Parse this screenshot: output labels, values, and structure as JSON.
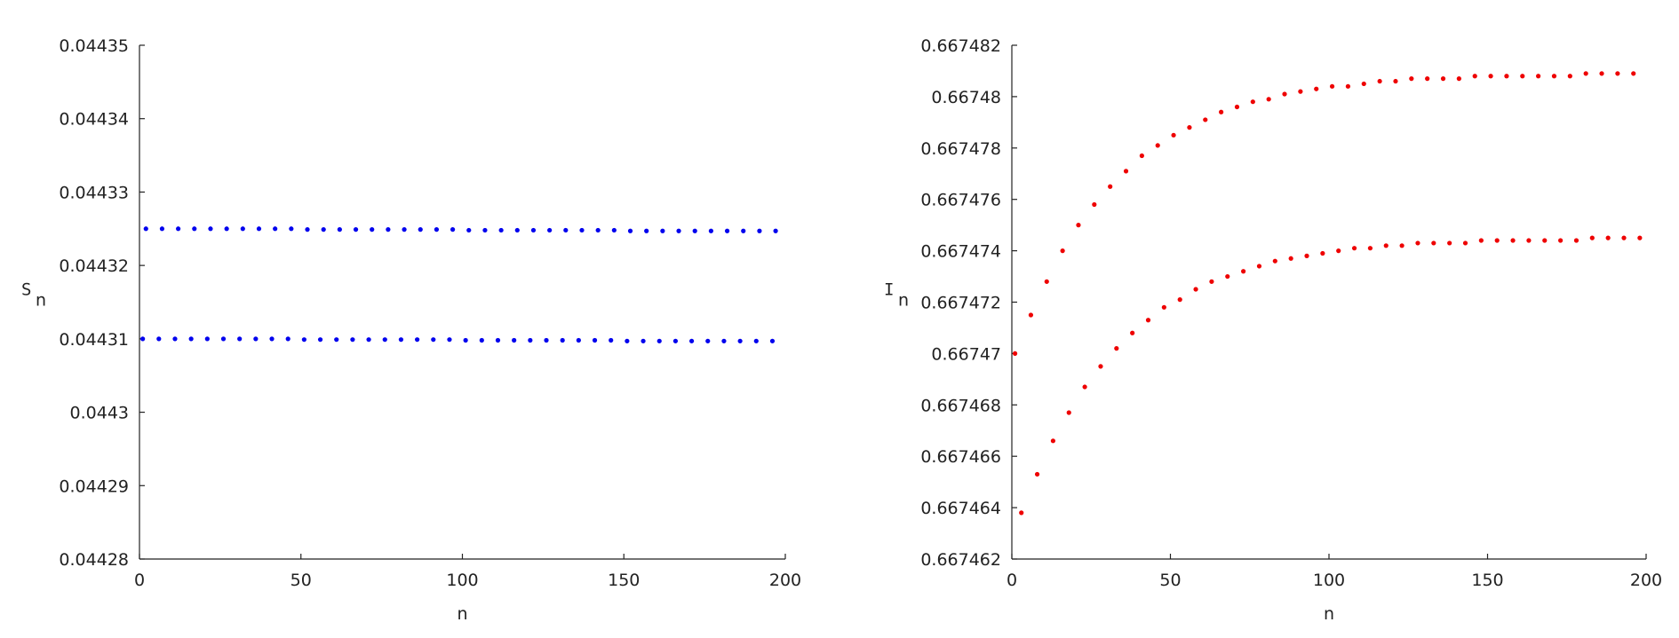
{
  "chart_data": [
    {
      "type": "scatter",
      "xlabel": "n",
      "ylabel": "S",
      "ylabel_sub": "n",
      "xlim": [
        0,
        200
      ],
      "xticks": [
        0,
        50,
        100,
        150,
        200
      ],
      "ylim": [
        0.04428,
        0.04435
      ],
      "yticks": [
        0.04428,
        0.04429,
        0.0443,
        0.04431,
        0.04432,
        0.04433,
        0.04434,
        0.04435
      ],
      "series": [
        {
          "color": "#0000ee",
          "x": [
            2,
            7,
            12,
            17,
            22,
            27,
            32,
            37,
            42,
            47,
            52,
            57,
            62,
            67,
            72,
            77,
            82,
            87,
            92,
            97,
            102,
            107,
            112,
            117,
            122,
            127,
            132,
            137,
            142,
            147,
            152,
            157,
            162,
            167,
            172,
            177,
            182,
            187,
            192,
            197
          ],
          "values": [
            0.044325,
            0.044325,
            0.044325,
            0.044325,
            0.044325,
            0.044325,
            0.044325,
            0.044325,
            0.044325,
            0.044325,
            0.0443249,
            0.0443249,
            0.0443249,
            0.0443249,
            0.0443249,
            0.0443249,
            0.0443249,
            0.0443249,
            0.0443249,
            0.0443249,
            0.0443248,
            0.0443248,
            0.0443248,
            0.0443248,
            0.0443248,
            0.0443248,
            0.0443248,
            0.0443248,
            0.0443248,
            0.0443248,
            0.0443247,
            0.0443247,
            0.0443247,
            0.0443247,
            0.0443247,
            0.0443247,
            0.0443247,
            0.0443247,
            0.0443247,
            0.0443247
          ]
        },
        {
          "color": "#0000ee",
          "x": [
            1,
            6,
            11,
            16,
            21,
            26,
            31,
            36,
            41,
            46,
            51,
            56,
            61,
            66,
            71,
            76,
            81,
            86,
            91,
            96,
            101,
            106,
            111,
            116,
            121,
            126,
            131,
            136,
            141,
            146,
            151,
            156,
            161,
            166,
            171,
            176,
            181,
            186,
            191,
            196
          ],
          "values": [
            0.04431,
            0.04431,
            0.04431,
            0.04431,
            0.04431,
            0.04431,
            0.04431,
            0.04431,
            0.04431,
            0.04431,
            0.0443099,
            0.0443099,
            0.0443099,
            0.0443099,
            0.0443099,
            0.0443099,
            0.0443099,
            0.0443099,
            0.0443099,
            0.0443099,
            0.0443098,
            0.0443098,
            0.0443098,
            0.0443098,
            0.0443098,
            0.0443098,
            0.0443098,
            0.0443098,
            0.0443098,
            0.0443098,
            0.0443097,
            0.0443097,
            0.0443097,
            0.0443097,
            0.0443097,
            0.0443097,
            0.0443097,
            0.0443097,
            0.0443097,
            0.0443097
          ]
        }
      ]
    },
    {
      "type": "scatter",
      "xlabel": "n",
      "ylabel": "I",
      "ylabel_sub": "n",
      "xlim": [
        0,
        200
      ],
      "xticks": [
        0,
        50,
        100,
        150,
        200
      ],
      "ylim": [
        0.667462,
        0.667482
      ],
      "yticks": [
        0.667462,
        0.667464,
        0.667466,
        0.667468,
        0.66747,
        0.667472,
        0.667474,
        0.667476,
        0.667478,
        0.66748,
        0.667482
      ],
      "series": [
        {
          "color": "#ee0000",
          "x": [
            1,
            6,
            11,
            16,
            21,
            26,
            31,
            36,
            41,
            46,
            51,
            56,
            61,
            66,
            71,
            76,
            81,
            86,
            91,
            96,
            101,
            106,
            111,
            116,
            121,
            126,
            131,
            136,
            141,
            146,
            151,
            156,
            161,
            166,
            171,
            176,
            181,
            186,
            191,
            196
          ],
          "values": [
            0.66747,
            0.6674715,
            0.6674728,
            0.667474,
            0.667475,
            0.6674758,
            0.6674765,
            0.6674771,
            0.6674777,
            0.6674781,
            0.6674785,
            0.6674788,
            0.6674791,
            0.6674794,
            0.6674796,
            0.6674798,
            0.6674799,
            0.6674801,
            0.6674802,
            0.6674803,
            0.6674804,
            0.6674804,
            0.6674805,
            0.6674806,
            0.6674806,
            0.6674807,
            0.6674807,
            0.6674807,
            0.6674807,
            0.6674808,
            0.6674808,
            0.6674808,
            0.6674808,
            0.6674808,
            0.6674808,
            0.6674808,
            0.6674809,
            0.6674809,
            0.6674809,
            0.6674809
          ]
        },
        {
          "color": "#ee0000",
          "x": [
            3,
            8,
            13,
            18,
            23,
            28,
            33,
            38,
            43,
            48,
            53,
            58,
            63,
            68,
            73,
            78,
            83,
            88,
            93,
            98,
            103,
            108,
            113,
            118,
            123,
            128,
            133,
            138,
            143,
            148,
            153,
            158,
            163,
            168,
            173,
            178,
            183,
            188,
            193,
            198
          ],
          "values": [
            0.6674638,
            0.6674653,
            0.6674666,
            0.6674677,
            0.6674687,
            0.6674695,
            0.6674702,
            0.6674708,
            0.6674713,
            0.6674718,
            0.6674721,
            0.6674725,
            0.6674728,
            0.667473,
            0.6674732,
            0.6674734,
            0.6674736,
            0.6674737,
            0.6674738,
            0.6674739,
            0.667474,
            0.6674741,
            0.6674741,
            0.6674742,
            0.6674742,
            0.6674743,
            0.6674743,
            0.6674743,
            0.6674743,
            0.6674744,
            0.6674744,
            0.6674744,
            0.6674744,
            0.6674744,
            0.6674744,
            0.6674744,
            0.6674745,
            0.6674745,
            0.6674745,
            0.6674745
          ]
        }
      ]
    }
  ]
}
